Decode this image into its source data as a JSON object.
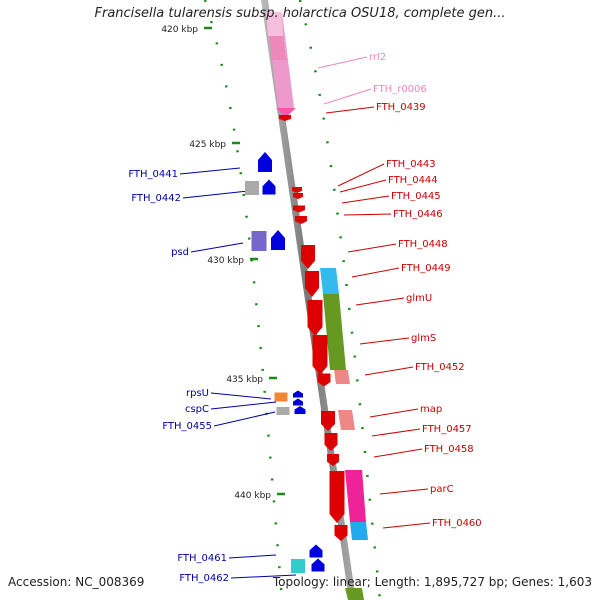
{
  "header": {
    "title": "Francisella tularensis subsp. holarctica OSU18, complete gen...",
    "accession": "Accession: NC_008369",
    "summary": "Topology: linear; Length: 1,895,727 bp; Genes: 1,603"
  },
  "colors": {
    "backbone": "#888888",
    "forward_label": "#0000aa",
    "reverse_label": "#cc0000",
    "rna_label": "#ee88bb",
    "tick": "#1a8a1a"
  },
  "scale_ticks": [
    {
      "label": "420 kbp"
    },
    {
      "label": "425 kbp"
    },
    {
      "label": "430 kbp"
    },
    {
      "label": "435 kbp"
    },
    {
      "label": "440 kbp"
    }
  ],
  "forward_genes": [
    {
      "label": "FTH_0441",
      "color": "#0000dd"
    },
    {
      "label": "FTH_0442",
      "color": "#0000dd"
    },
    {
      "label": "psd",
      "color": "#0000dd"
    },
    {
      "label": "rpsU",
      "color": "#0000dd"
    },
    {
      "label": "cspC",
      "color": "#0000dd"
    },
    {
      "label": "FTH_0455",
      "color": "#0000dd"
    },
    {
      "label": "FTH_0461",
      "color": "#0000dd"
    },
    {
      "label": "FTH_0462",
      "color": "#0000dd"
    }
  ],
  "reverse_genes": [
    {
      "label": "rrl2",
      "color": "#ee99cc"
    },
    {
      "label": "FTH_r0006",
      "color": "#ee99cc"
    },
    {
      "label": "FTH_0439",
      "color": "#dd0000"
    },
    {
      "label": "FTH_0443",
      "color": "#dd0000"
    },
    {
      "label": "FTH_0444",
      "color": "#dd0000"
    },
    {
      "label": "FTH_0445",
      "color": "#dd0000"
    },
    {
      "label": "FTH_0446",
      "color": "#dd0000"
    },
    {
      "label": "FTH_0448",
      "color": "#dd0000"
    },
    {
      "label": "FTH_0449",
      "color": "#dd0000"
    },
    {
      "label": "glmU",
      "color": "#dd0000"
    },
    {
      "label": "glmS",
      "color": "#dd0000"
    },
    {
      "label": "FTH_0452",
      "color": "#dd0000"
    },
    {
      "label": "map",
      "color": "#dd0000"
    },
    {
      "label": "FTH_0457",
      "color": "#dd0000"
    },
    {
      "label": "FTH_0458",
      "color": "#dd0000"
    },
    {
      "label": "parC",
      "color": "#dd0000"
    },
    {
      "label": "FTH_0460",
      "color": "#dd0000"
    }
  ]
}
